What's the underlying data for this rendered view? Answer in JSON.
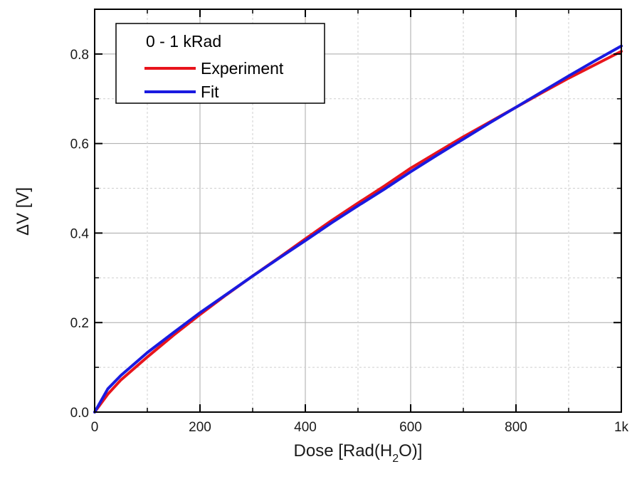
{
  "chart_data": {
    "type": "line",
    "xlabel": {
      "main": "Dose [Rad(H",
      "sub": "2",
      "tail": "O)]"
    },
    "ylabel": "ΔV [V]",
    "xlim": [
      0,
      1000
    ],
    "ylim": [
      0,
      0.9
    ],
    "x_ticks": [
      0,
      200,
      400,
      600,
      800,
      1000
    ],
    "x_tick_labels": [
      "0",
      "200",
      "400",
      "600",
      "800",
      "1k"
    ],
    "y_ticks": [
      0.0,
      0.2,
      0.4,
      0.6,
      0.8
    ],
    "y_tick_labels": [
      "0.0",
      "0.2",
      "0.4",
      "0.6",
      "0.8"
    ],
    "grid": true,
    "legend": {
      "title": "0 - 1 kRad",
      "placement": "top-left"
    },
    "series": [
      {
        "name": "Experiment",
        "color": "#e8141c",
        "x": [
          0,
          25,
          50,
          100,
          150,
          200,
          250,
          300,
          350,
          400,
          450,
          500,
          550,
          600,
          650,
          700,
          750,
          800,
          850,
          900,
          950,
          1000
        ],
        "y": [
          0.0,
          0.04,
          0.072,
          0.123,
          0.172,
          0.218,
          0.262,
          0.304,
          0.345,
          0.387,
          0.428,
          0.467,
          0.505,
          0.545,
          0.58,
          0.615,
          0.648,
          0.681,
          0.714,
          0.746,
          0.776,
          0.806
        ]
      },
      {
        "name": "Fit",
        "color": "#1a1ae0",
        "x": [
          0,
          25,
          50,
          100,
          150,
          200,
          250,
          300,
          350,
          400,
          450,
          500,
          550,
          600,
          650,
          700,
          750,
          800,
          850,
          900,
          950,
          1000
        ],
        "y": [
          0.0,
          0.052,
          0.082,
          0.133,
          0.178,
          0.222,
          0.263,
          0.304,
          0.344,
          0.383,
          0.423,
          0.461,
          0.498,
          0.537,
          0.574,
          0.61,
          0.646,
          0.681,
          0.716,
          0.751,
          0.785,
          0.818
        ]
      }
    ]
  }
}
